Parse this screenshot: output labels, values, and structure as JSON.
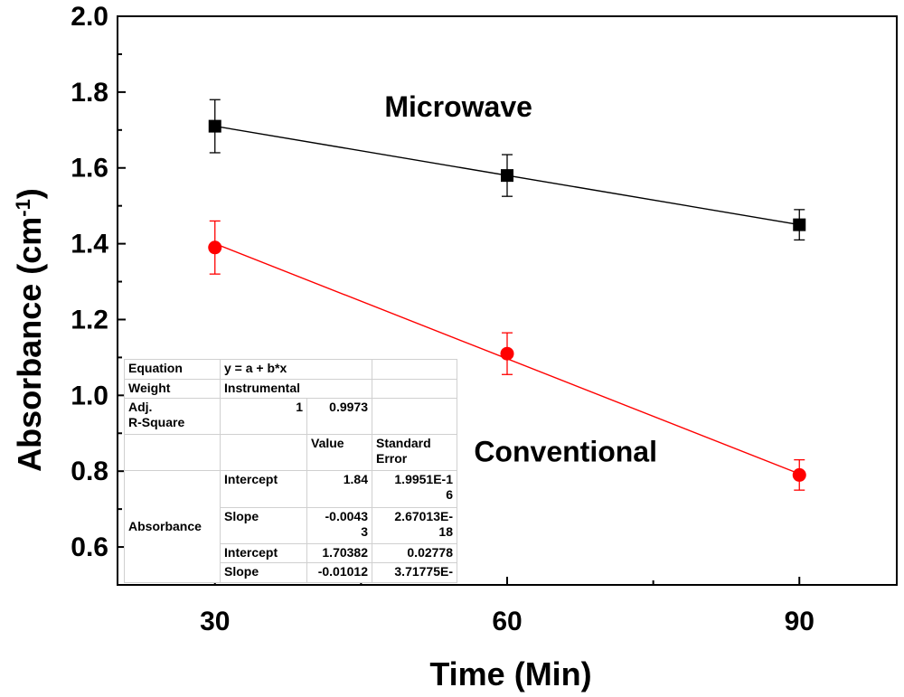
{
  "chart_data": {
    "type": "line",
    "title": "",
    "xlabel": "Time (Min)",
    "ylabel_main": "Absorbance (cm",
    "ylabel_sup": "-1",
    "ylabel_end": ")",
    "xlim": [
      20,
      100
    ],
    "ylim": [
      0.5,
      2.0
    ],
    "x_ticks": [
      30,
      60,
      90
    ],
    "x_tick_labels": [
      "30",
      "60",
      "90"
    ],
    "y_ticks": [
      0.6,
      0.8,
      1.0,
      1.2,
      1.4,
      1.6,
      1.8,
      2.0
    ],
    "y_tick_labels": [
      "0.6",
      "0.8",
      "1.0",
      "1.2",
      "1.4",
      "1.6",
      "1.8",
      "2.0"
    ],
    "series": [
      {
        "name": "Microwave",
        "marker": "square",
        "color": "#000000",
        "x": [
          30,
          60,
          90
        ],
        "values": [
          1.71,
          1.58,
          1.45
        ],
        "errors": [
          0.07,
          0.055,
          0.04
        ],
        "fit": {
          "intercept": 1.84,
          "slope": -0.00433
        }
      },
      {
        "name": "Conventional",
        "marker": "circle",
        "color": "#ff0000",
        "x": [
          30,
          60,
          90
        ],
        "values": [
          1.39,
          1.11,
          0.79
        ],
        "errors": [
          0.07,
          0.055,
          0.04
        ],
        "fit": {
          "intercept": 1.70382,
          "slope": -0.01012
        }
      }
    ],
    "annotations": [
      {
        "text": "Microwave",
        "x": 55,
        "y": 1.735
      },
      {
        "text": "Conventional",
        "x": 66,
        "y": 0.825
      }
    ]
  },
  "fit_table": {
    "equation_label": "Equation",
    "equation_value": "y = a + b*x",
    "weight_label": "Weight",
    "weight_value": "Instrumental",
    "adj_label_1": "Adj.",
    "adj_label_2": "R-Square",
    "adj_value_1": "1",
    "adj_value_2": "0.9973",
    "col_value": "Value",
    "col_stderr_1": "Standard",
    "col_stderr_2": "Error",
    "group_label": "Absorbance",
    "row1_param": "Intercept",
    "row1_value": "1.84",
    "row1_err_1": "1.9951E-1",
    "row1_err_2": "6",
    "row2_param": "Slope",
    "row2_value_1": "-0.0043",
    "row2_value_2": "3",
    "row2_err_1": "2.67013E-",
    "row2_err_2": "18",
    "row3_param": "Intercept",
    "row3_value": "1.70382",
    "row3_err": "0.02778",
    "row4_param": "Slope",
    "row4_value": "-0.01012",
    "row4_err": "3.71775E-"
  }
}
